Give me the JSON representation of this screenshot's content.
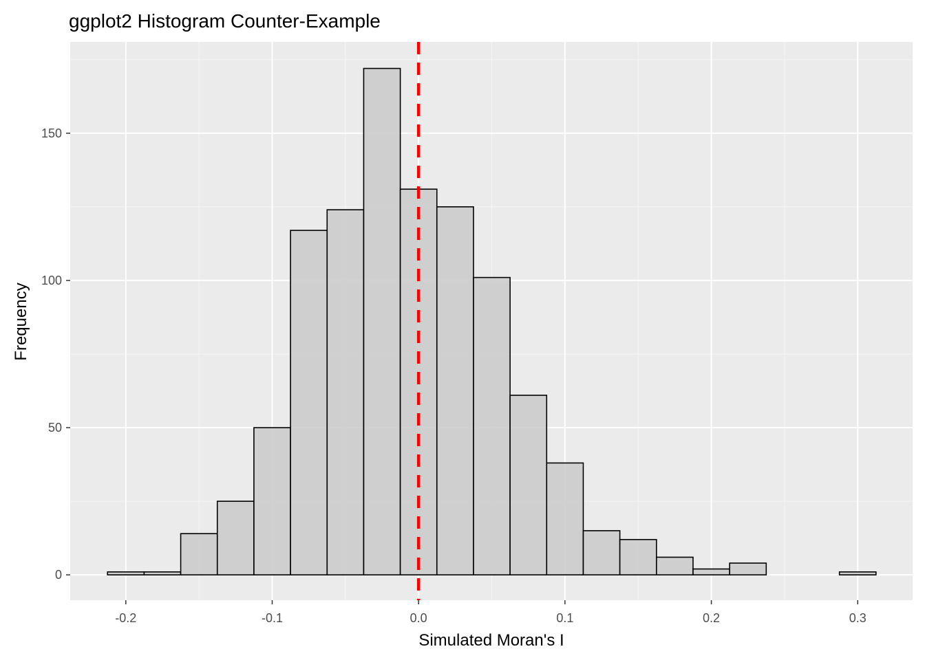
{
  "chart_data": {
    "type": "bar",
    "title": "ggplot2 Histogram Counter-Example",
    "xlabel": "Simulated Moran's I",
    "ylabel": "Frequency",
    "xlim": [
      -0.238,
      0.3375
    ],
    "ylim": [
      -8.6,
      181
    ],
    "x_ticks": [
      -0.2,
      -0.1,
      0.0,
      0.1,
      0.2,
      0.3
    ],
    "x_tick_labels": [
      "-0.2",
      "-0.1",
      "0.0",
      "0.1",
      "0.2",
      "0.3"
    ],
    "y_ticks": [
      0,
      50,
      100,
      150
    ],
    "y_tick_labels": [
      "0",
      "50",
      "100",
      "150"
    ],
    "grid": true,
    "bin_width": 0.025,
    "bins": [
      {
        "x_start": -0.2125,
        "x_end": -0.1875,
        "count": 1
      },
      {
        "x_start": -0.1875,
        "x_end": -0.1625,
        "count": 1
      },
      {
        "x_start": -0.1625,
        "x_end": -0.1375,
        "count": 14
      },
      {
        "x_start": -0.1375,
        "x_end": -0.1125,
        "count": 25
      },
      {
        "x_start": -0.1125,
        "x_end": -0.0875,
        "count": 50
      },
      {
        "x_start": -0.0875,
        "x_end": -0.0625,
        "count": 117
      },
      {
        "x_start": -0.0625,
        "x_end": -0.0375,
        "count": 124
      },
      {
        "x_start": -0.0375,
        "x_end": -0.0125,
        "count": 172
      },
      {
        "x_start": -0.0125,
        "x_end": 0.0125,
        "count": 131
      },
      {
        "x_start": 0.0125,
        "x_end": 0.0375,
        "count": 125
      },
      {
        "x_start": 0.0375,
        "x_end": 0.0625,
        "count": 101
      },
      {
        "x_start": 0.0625,
        "x_end": 0.0875,
        "count": 61
      },
      {
        "x_start": 0.0875,
        "x_end": 0.1125,
        "count": 38
      },
      {
        "x_start": 0.1125,
        "x_end": 0.1375,
        "count": 15
      },
      {
        "x_start": 0.1375,
        "x_end": 0.1625,
        "count": 12
      },
      {
        "x_start": 0.1625,
        "x_end": 0.1875,
        "count": 6
      },
      {
        "x_start": 0.1875,
        "x_end": 0.2125,
        "count": 2
      },
      {
        "x_start": 0.2125,
        "x_end": 0.2375,
        "count": 4
      },
      {
        "x_start": 0.2375,
        "x_end": 0.2625,
        "count": 0
      },
      {
        "x_start": 0.2625,
        "x_end": 0.2875,
        "count": 0
      },
      {
        "x_start": 0.2875,
        "x_end": 0.3125,
        "count": 1
      }
    ],
    "reference_line": {
      "x": 0.0,
      "style": "dashed"
    },
    "colors": {
      "panel_background": "#ebebeb",
      "grid_major": "#ffffff",
      "grid_minor": "#f5f5f5",
      "bar_fill": "#cccccc",
      "bar_outline": "#000000",
      "reference_line": "#ff0000",
      "tick_mark": "#333333"
    }
  }
}
